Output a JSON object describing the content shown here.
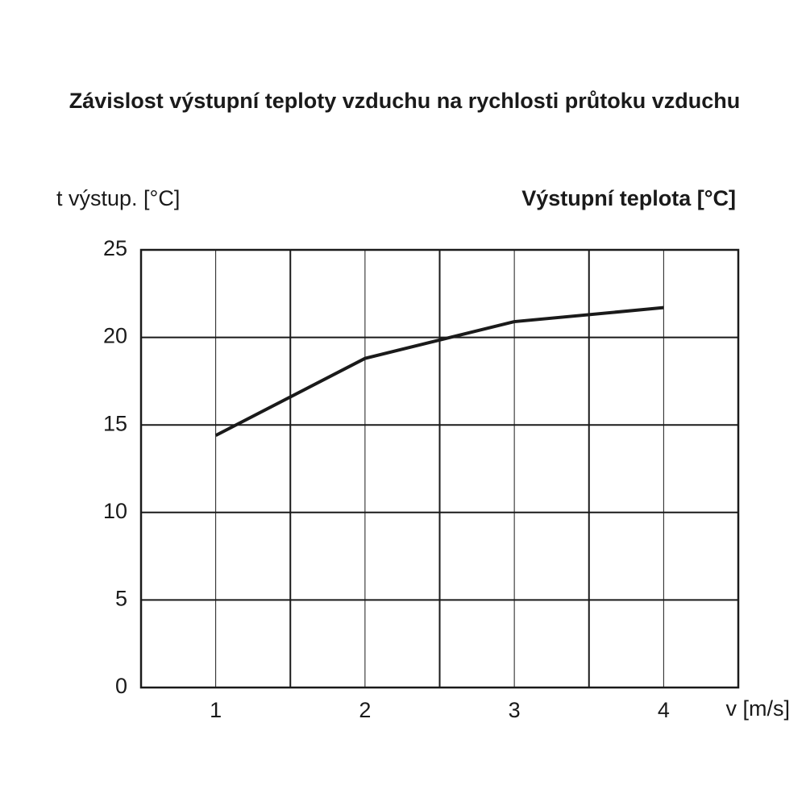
{
  "chart_data": {
    "type": "line",
    "title": "Závislost výstupní teploty vzduchu na rychlosti průtoku vzduchu",
    "y_label": "t výstup. [°C]",
    "x_label": "v [m/s]",
    "x": [
      1,
      2,
      3,
      4
    ],
    "series": [
      {
        "name": "Výstupní teplota [°C]",
        "color": "#1a1a1a",
        "values": [
          14.4,
          18.8,
          20.9,
          21.7
        ]
      }
    ],
    "xlim": [
      0.5,
      4.5
    ],
    "xticks": [
      1,
      {
        "value": 1.5,
        "label": null
      },
      2,
      {
        "value": 2.5,
        "label": null
      },
      3,
      {
        "value": 3.5,
        "label": null
      },
      4
    ],
    "ylim": [
      0,
      25
    ],
    "yticks": [
      0,
      5,
      10,
      15,
      20,
      25
    ],
    "grid": true
  }
}
